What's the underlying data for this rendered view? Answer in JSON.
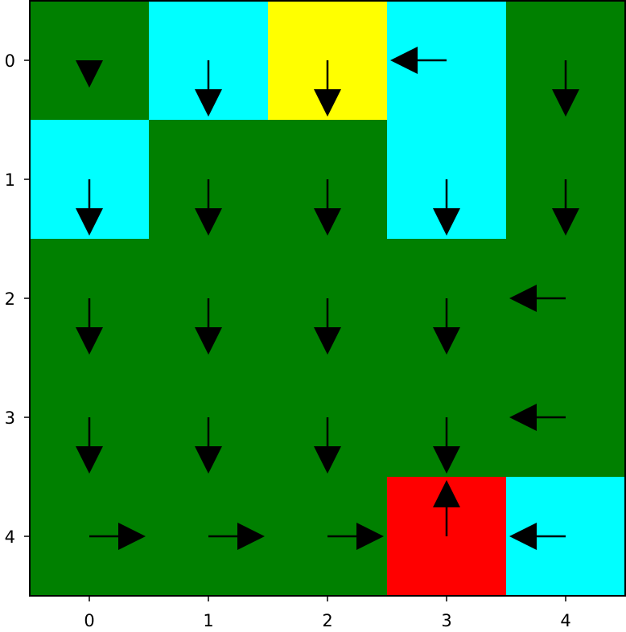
{
  "chart_data": {
    "type": "heatmap",
    "rows": 5,
    "cols": 5,
    "x_ticks": [
      "0",
      "1",
      "2",
      "3",
      "4"
    ],
    "y_ticks": [
      "0",
      "1",
      "2",
      "3",
      "4"
    ],
    "colors": {
      "green": "#008000",
      "cyan": "#00ffff",
      "yellow": "#ffff00",
      "red": "#ff0000",
      "arrow": "#000000"
    },
    "grid": false,
    "cells": [
      [
        "green",
        "cyan",
        "yellow",
        "cyan",
        "green"
      ],
      [
        "cyan",
        "green",
        "green",
        "cyan",
        "green"
      ],
      [
        "green",
        "green",
        "green",
        "green",
        "green"
      ],
      [
        "green",
        "green",
        "green",
        "green",
        "green"
      ],
      [
        "green",
        "green",
        "green",
        "red",
        "cyan"
      ]
    ],
    "arrows": [
      [
        "down",
        "down",
        "down",
        "left",
        "down"
      ],
      [
        "down",
        "down",
        "down",
        "down",
        "down"
      ],
      [
        "down",
        "down",
        "down",
        "down",
        "left"
      ],
      [
        "down",
        "down",
        "down",
        "down",
        "left"
      ],
      [
        "right",
        "right",
        "right",
        "up",
        "left"
      ]
    ],
    "short_arrows": [
      [
        0,
        0
      ]
    ]
  }
}
